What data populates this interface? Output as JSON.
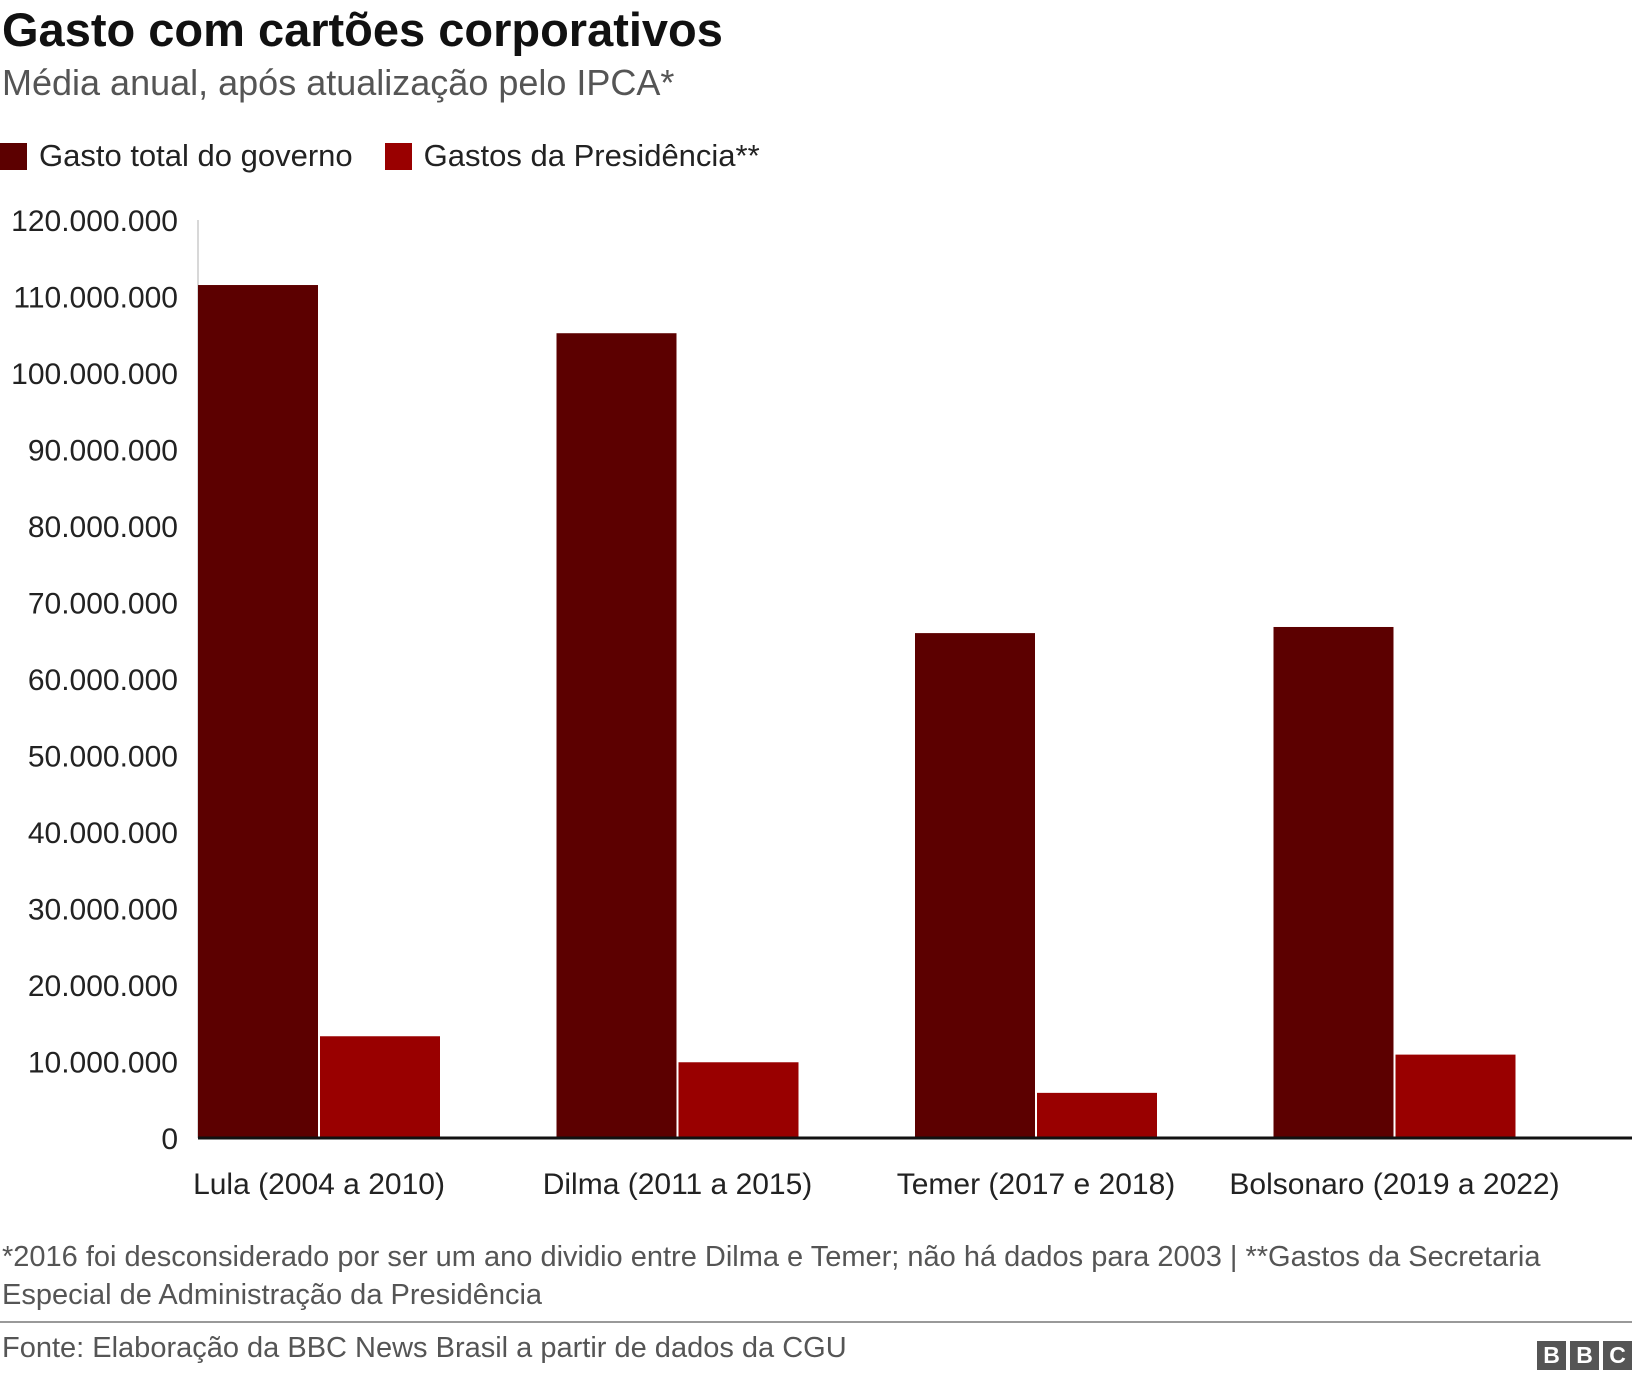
{
  "header": {
    "title": "Gasto com cartões corporativos",
    "subtitle": "Média anual, após atualização pelo IPCA*"
  },
  "legend": [
    {
      "label": "Gasto total do governo",
      "color": "#5c0000"
    },
    {
      "label": "Gastos da Presidência**",
      "color": "#990000"
    }
  ],
  "chart_data": {
    "type": "bar",
    "title": "Gasto com cartões corporativos",
    "subtitle": "Média anual, após atualização pelo IPCA*",
    "categories": [
      "Lula (2004 a 2010)",
      "Dilma (2011 a 2015)",
      "Temer (2017 e 2018)",
      "Bolsonaro (2019 a 2022)"
    ],
    "series": [
      {
        "name": "Gasto total do governo",
        "color": "#5c0000",
        "values": [
          111500000,
          105200000,
          66000000,
          66800000
        ]
      },
      {
        "name": "Gastos da Presidência**",
        "color": "#990000",
        "values": [
          13300000,
          9900000,
          5900000,
          10900000
        ]
      }
    ],
    "ylim": [
      0,
      120000000
    ],
    "yticks": [
      0,
      10000000,
      20000000,
      30000000,
      40000000,
      50000000,
      60000000,
      70000000,
      80000000,
      90000000,
      100000000,
      110000000,
      120000000
    ],
    "ytick_labels": [
      "0",
      "10.000.000",
      "20.000.000",
      "30.000.000",
      "40.000.000",
      "50.000.000",
      "60.000.000",
      "70.000.000",
      "80.000.000",
      "90.000.000",
      "100.000.000",
      "110.000.000",
      "120.000.000"
    ],
    "grid": false,
    "legend_position": "top-left"
  },
  "footer": {
    "note": "*2016 foi desconsiderado por ser um ano dividio entre Dilma e Temer; não há dados para 2003 | **Gastos da Secretaria Especial de Administração da Presidência",
    "source": "Fonte: Elaboração da BBC News Brasil a partir de dados da CGU",
    "logo_letters": [
      "B",
      "B",
      "C"
    ]
  }
}
